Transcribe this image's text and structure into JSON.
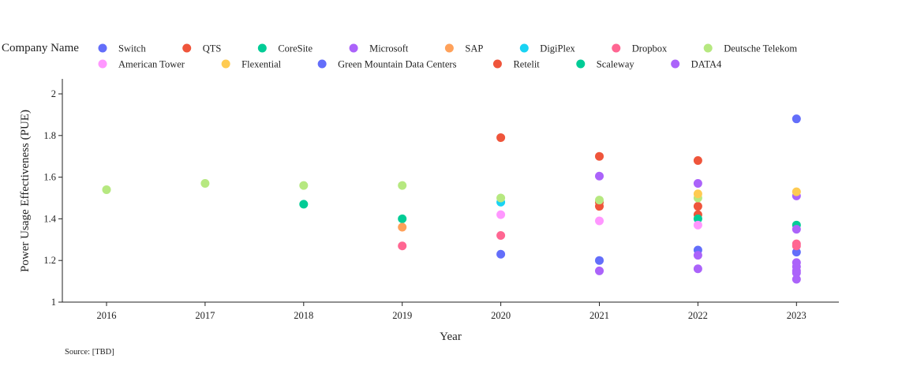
{
  "chart_data": {
    "type": "scatter",
    "xlabel": "Year",
    "ylabel": "Power Usage Effectiveness (PUE)",
    "legend_title": "Company Name",
    "legend_position": "top",
    "source_note": "Source: [TBD]",
    "x_categories": [
      "2016",
      "2017",
      "2018",
      "2019",
      "2020",
      "2021",
      "2022",
      "2023"
    ],
    "y_ticks": [
      1,
      1.2,
      1.4,
      1.6,
      1.8,
      2
    ],
    "ylim": [
      1,
      2.07
    ],
    "grid": false,
    "series": [
      {
        "name": "Switch",
        "color": "#636efa",
        "points": [
          {
            "x": "2020",
            "y": 1.23
          },
          {
            "x": "2021",
            "y": 1.2
          },
          {
            "x": "2022",
            "y": 1.25
          },
          {
            "x": "2023",
            "y": 1.88
          },
          {
            "x": "2023",
            "y": 1.24
          }
        ]
      },
      {
        "name": "QTS",
        "color": "#ef553b",
        "points": [
          {
            "x": "2020",
            "y": 1.79
          },
          {
            "x": "2021",
            "y": 1.7
          },
          {
            "x": "2021",
            "y": 1.48
          },
          {
            "x": "2021",
            "y": 1.46
          },
          {
            "x": "2022",
            "y": 1.68
          },
          {
            "x": "2022",
            "y": 1.46
          },
          {
            "x": "2022",
            "y": 1.42
          }
        ]
      },
      {
        "name": "CoreSite",
        "color": "#00cc96",
        "points": [
          {
            "x": "2018",
            "y": 1.47
          },
          {
            "x": "2019",
            "y": 1.4
          },
          {
            "x": "2022",
            "y": 1.4
          },
          {
            "x": "2023",
            "y": 1.37
          }
        ]
      },
      {
        "name": "Microsoft",
        "color": "#ab63fa",
        "points": [
          {
            "x": "2021",
            "y": 1.605
          },
          {
            "x": "2022",
            "y": 1.57
          },
          {
            "x": "2023",
            "y": 1.35
          },
          {
            "x": "2023",
            "y": 1.51
          }
        ]
      },
      {
        "name": "SAP",
        "color": "#ffa15a",
        "points": [
          {
            "x": "2019",
            "y": 1.36
          }
        ]
      },
      {
        "name": "DigiPlex",
        "color": "#19d3f3",
        "points": [
          {
            "x": "2020",
            "y": 1.48
          }
        ]
      },
      {
        "name": "Dropbox",
        "color": "#ff6692",
        "points": [
          {
            "x": "2019",
            "y": 1.27
          },
          {
            "x": "2020",
            "y": 1.32
          },
          {
            "x": "2023",
            "y": 1.28
          },
          {
            "x": "2023",
            "y": 1.27
          }
        ]
      },
      {
        "name": "Deutsche Telekom",
        "color": "#b6e880",
        "points": [
          {
            "x": "2016",
            "y": 1.54
          },
          {
            "x": "2017",
            "y": 1.57
          },
          {
            "x": "2018",
            "y": 1.56
          },
          {
            "x": "2019",
            "y": 1.56
          },
          {
            "x": "2020",
            "y": 1.5
          },
          {
            "x": "2021",
            "y": 1.49
          },
          {
            "x": "2022",
            "y": 1.5
          }
        ]
      },
      {
        "name": "American Tower",
        "color": "#ff97ff",
        "points": [
          {
            "x": "2020",
            "y": 1.42
          },
          {
            "x": "2021",
            "y": 1.39
          },
          {
            "x": "2022",
            "y": 1.37
          }
        ]
      },
      {
        "name": "Flexential",
        "color": "#fecb52",
        "points": [
          {
            "x": "2022",
            "y": 1.52
          },
          {
            "x": "2023",
            "y": 1.53
          }
        ]
      },
      {
        "name": "Green Mountain Data Centers",
        "color": "#636efa",
        "points": []
      },
      {
        "name": "Retelit",
        "color": "#ef553b",
        "points": []
      },
      {
        "name": "Scaleway",
        "color": "#00cc96",
        "points": []
      },
      {
        "name": "DATA4",
        "color": "#ab63fa",
        "points": [
          {
            "x": "2021",
            "y": 1.15
          },
          {
            "x": "2022",
            "y": 1.16
          },
          {
            "x": "2022",
            "y": 1.225
          },
          {
            "x": "2023",
            "y": 1.19
          },
          {
            "x": "2023",
            "y": 1.17
          },
          {
            "x": "2023",
            "y": 1.15
          },
          {
            "x": "2023",
            "y": 1.14
          },
          {
            "x": "2023",
            "y": 1.11
          }
        ]
      }
    ]
  }
}
